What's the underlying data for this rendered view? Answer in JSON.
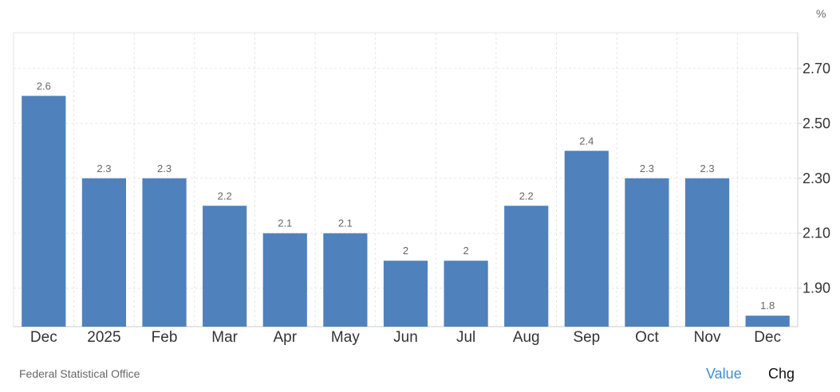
{
  "chart_data": {
    "type": "bar",
    "categories": [
      "Dec",
      "2025",
      "Feb",
      "Mar",
      "Apr",
      "May",
      "Jun",
      "Jul",
      "Aug",
      "Sep",
      "Oct",
      "Nov",
      "Dec"
    ],
    "values": [
      2.6,
      2.3,
      2.3,
      2.2,
      2.1,
      2.1,
      2.0,
      2.0,
      2.2,
      2.4,
      2.3,
      2.3,
      1.8
    ],
    "data_labels": [
      "2.6",
      "2.3",
      "2.3",
      "2.2",
      "2.1",
      "2.1",
      "2",
      "2",
      "2.2",
      "2.4",
      "2.3",
      "2.3",
      "1.8"
    ],
    "title": "",
    "xlabel": "",
    "ylabel": "",
    "unit": "%",
    "ylim": [
      1.76,
      2.83
    ],
    "yticks": [
      1.9,
      2.1,
      2.3,
      2.5,
      2.7
    ],
    "ytick_labels": [
      "1.90",
      "2.10",
      "2.30",
      "2.50",
      "2.70"
    ],
    "y_axis_position": "right",
    "grid": true,
    "bar_color": "#4f81bd"
  },
  "source": "Federal Statistical Office",
  "toggles": {
    "value_label": "Value",
    "chg_label": "Chg"
  },
  "colors": {
    "active_toggle": "#3a8fd8",
    "grid": "#e6e6e6"
  }
}
